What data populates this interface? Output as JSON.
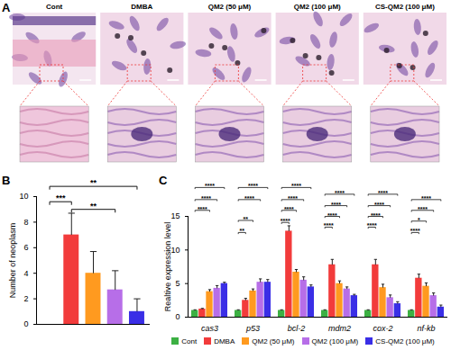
{
  "panel_a": {
    "panel_label": "A",
    "images": [
      "Cont",
      "DMBA",
      "QM2 (50 μM)",
      "QM2 (100 μM)",
      "CS-QM2 (100 μM)"
    ]
  },
  "chart_data": [
    {
      "type": "bar",
      "panel_label": "B",
      "categories": [
        "Cont",
        "DMBA",
        "QM2 (50 μM)",
        "QM2 (100 μM)",
        "CS-QM2 (100 μM)"
      ],
      "values": [
        0,
        7,
        4,
        2.7,
        1
      ],
      "errors": [
        0,
        1.7,
        1.7,
        1.5,
        1
      ],
      "colors": [
        "#3cb043",
        "#f23b3b",
        "#ff9a1f",
        "#b76ee8",
        "#3a2ee6"
      ],
      "ylabel": "Number of neoplasm",
      "ylim": [
        0,
        10
      ],
      "yticks": [
        0,
        2,
        4,
        6,
        8,
        10
      ],
      "tick_labels": "y",
      "annotations": [
        {
          "from": "Cont",
          "to": "CS-QM2 (100 μM)",
          "y": 10.8,
          "label": "**"
        },
        {
          "from": "Cont",
          "to": "DMBA",
          "y": 9.6,
          "label": "***"
        },
        {
          "from": "DMBA",
          "to": "QM2 (100 μM)",
          "y": 9.0,
          "label": "**"
        }
      ]
    },
    {
      "type": "bar",
      "panel_label": "C",
      "categories": [
        "cas3",
        "p53",
        "bcl-2",
        "mdm2",
        "cox-2",
        "nf-kb"
      ],
      "series": [
        {
          "name": "Cont",
          "color": "#3cb043",
          "values": [
            1,
            1,
            1,
            1,
            1,
            1
          ],
          "errors": [
            0.1,
            0.1,
            0.1,
            0.1,
            0.1,
            0.1
          ]
        },
        {
          "name": "DMBA",
          "color": "#f23b3b",
          "values": [
            1.2,
            2.5,
            12.8,
            7.8,
            7.8,
            5.8
          ],
          "errors": [
            0.1,
            0.3,
            0.8,
            0.8,
            0.8,
            0.6
          ]
        },
        {
          "name": "QM2 (50 μM)",
          "color": "#ff9a1f",
          "values": [
            3.8,
            3.9,
            6.7,
            5.0,
            4.4,
            4.6
          ],
          "errors": [
            0.3,
            0.3,
            0.4,
            0.4,
            0.5,
            0.5
          ]
        },
        {
          "name": "QM2 (100 μM)",
          "color": "#b76ee8",
          "values": [
            4.3,
            5.2,
            5.5,
            4.2,
            2.9,
            3.2
          ],
          "errors": [
            0.4,
            0.5,
            0.5,
            0.3,
            0.4,
            0.4
          ]
        },
        {
          "name": "CS-QM2 (100 μM)",
          "color": "#3a2ee6",
          "values": [
            5.0,
            5.2,
            4.5,
            3.2,
            2.0,
            1.5
          ],
          "errors": [
            0.2,
            0.4,
            0.3,
            0.2,
            0.3,
            0.3
          ]
        }
      ],
      "ylabel": "Realtive expression level",
      "ylim": [
        0,
        15
      ],
      "yticks": [
        0,
        5,
        10,
        15
      ],
      "legend": "bottom",
      "annotations": [
        {
          "category": "cas3",
          "from": "Cont",
          "to": "QM2 (50 μM)",
          "y": 15.9,
          "label": "****"
        },
        {
          "category": "cas3",
          "from": "Cont",
          "to": "QM2 (100 μM)",
          "y": 17.5,
          "label": "****"
        },
        {
          "category": "cas3",
          "from": "Cont",
          "to": "CS-QM2 (100 μM)",
          "y": 19.3,
          "label": "****"
        },
        {
          "category": "p53",
          "from": "Cont",
          "to": "DMBA",
          "y": 12.6,
          "label": "**"
        },
        {
          "category": "p53",
          "from": "Cont",
          "to": "QM2 (50 μM)",
          "y": 14.4,
          "label": "**"
        },
        {
          "category": "p53",
          "from": "Cont",
          "to": "QM2 (100 μM)",
          "y": 17.5,
          "label": "****"
        },
        {
          "category": "p53",
          "from": "Cont",
          "to": "CS-QM2 (100 μM)",
          "y": 19.3,
          "label": "****"
        },
        {
          "category": "bcl-2",
          "from": "Cont",
          "to": "DMBA",
          "y": 14.1,
          "label": "****"
        },
        {
          "category": "bcl-2",
          "from": "Cont",
          "to": "QM2 (50 μM)",
          "y": 15.9,
          "label": "****"
        },
        {
          "category": "bcl-2",
          "from": "Cont",
          "to": "QM2 (100 μM)",
          "y": 17.5,
          "label": "****"
        },
        {
          "category": "bcl-2",
          "from": "Cont",
          "to": "CS-QM2 (100 μM)",
          "y": 19.3,
          "label": "****"
        },
        {
          "category": "mdm2",
          "from": "Cont",
          "to": "DMBA",
          "y": 13.4,
          "label": "****"
        },
        {
          "category": "mdm2",
          "from": "Cont",
          "to": "QM2 (50 μM)",
          "y": 15.0,
          "label": "****"
        },
        {
          "category": "mdm2",
          "from": "Cont",
          "to": "QM2 (100 μM)",
          "y": 16.6,
          "label": "****"
        },
        {
          "category": "mdm2",
          "from": "Cont",
          "to": "CS-QM2 (100 μM)",
          "y": 18.3,
          "label": "****"
        },
        {
          "category": "cox-2",
          "from": "Cont",
          "to": "DMBA",
          "y": 13.4,
          "label": "****"
        },
        {
          "category": "cox-2",
          "from": "Cont",
          "to": "QM2 (50 μM)",
          "y": 15.0,
          "label": "****"
        },
        {
          "category": "cox-2",
          "from": "Cont",
          "to": "QM2 (100 μM)",
          "y": 16.6,
          "label": "****"
        },
        {
          "category": "cox-2",
          "from": "Cont",
          "to": "CS-QM2 (100 μM)",
          "y": 18.3,
          "label": "****"
        },
        {
          "category": "nf-kb",
          "from": "Cont",
          "to": "DMBA",
          "y": 12.6,
          "label": "****"
        },
        {
          "category": "nf-kb",
          "from": "Cont",
          "to": "QM2 (50 μM)",
          "y": 14.3,
          "label": "*"
        },
        {
          "category": "nf-kb",
          "from": "Cont",
          "to": "QM2 (100 μM)",
          "y": 15.9,
          "label": "****"
        },
        {
          "category": "nf-kb",
          "from": "Cont",
          "to": "CS-QM2 (100 μM)",
          "y": 17.5,
          "label": "****"
        }
      ]
    }
  ]
}
